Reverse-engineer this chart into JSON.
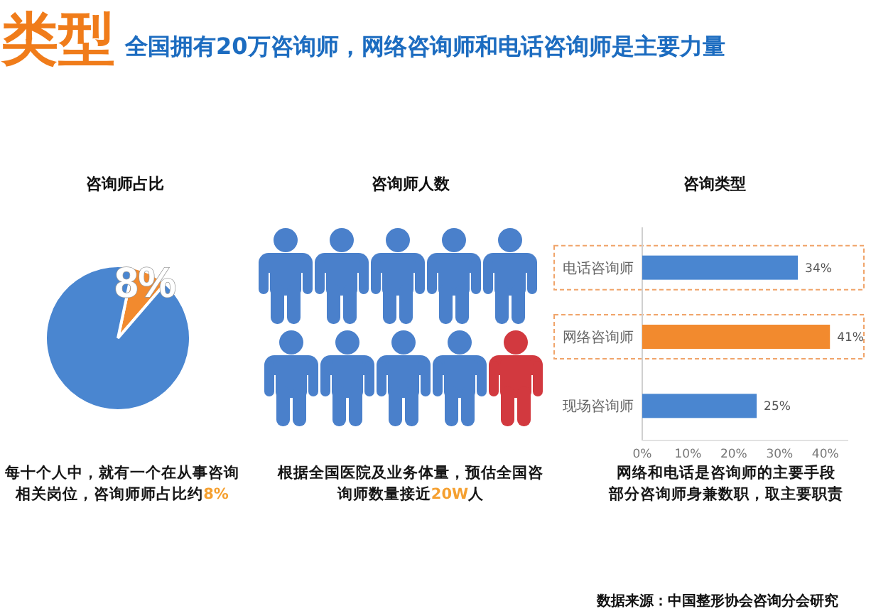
{
  "chart_data": [
    {
      "type": "other",
      "title": "类型",
      "subtitle": "全国拥有20万咨询师，网络咨询师和电话咨询师是主要力量",
      "annotations": [
        "数据来源：中国整形协会咨询分会研究"
      ]
    },
    {
      "type": "pie",
      "title": "咨询师占比",
      "categories": [
        null,
        null
      ],
      "values": [
        8,
        92
      ],
      "colors": [
        "#f28a2e",
        "#4a86d0"
      ],
      "value_labels": [
        "8%",
        null
      ],
      "annotations": [
        "每十个人中，就有一个在从事咨询相关岗位，咨询师师占比约**8%**"
      ]
    },
    {
      "type": "other",
      "title": "咨询师人数",
      "annotations": [
        "根据全国医院及业务体量，预估全国咨询师数量接近**20W**人"
      ]
    },
    {
      "type": "bar",
      "title": "咨询类型",
      "orientation": "horizontal",
      "categories": [
        "电话咨询师",
        "网络咨询师",
        "现场咨询师"
      ],
      "values": [
        34,
        41,
        25
      ],
      "colors": [
        "#4a86d0",
        "#f28a2e",
        "#4a86d0"
      ],
      "value_labels": [
        "34%",
        "41%",
        "25%"
      ],
      "xlim": [
        0,
        45
      ],
      "xticks": [
        {
          "value": 0,
          "label": "0%"
        },
        {
          "value": 10,
          "label": "10%"
        },
        {
          "value": 20,
          "label": "20%"
        },
        {
          "value": 30,
          "label": "30%"
        },
        {
          "value": 40,
          "label": "40%"
        }
      ],
      "annotations": [
        "网络和电话是咨询师的主要手段",
        "部分咨询师身兼数职，取主要职责"
      ]
    }
  ]
}
